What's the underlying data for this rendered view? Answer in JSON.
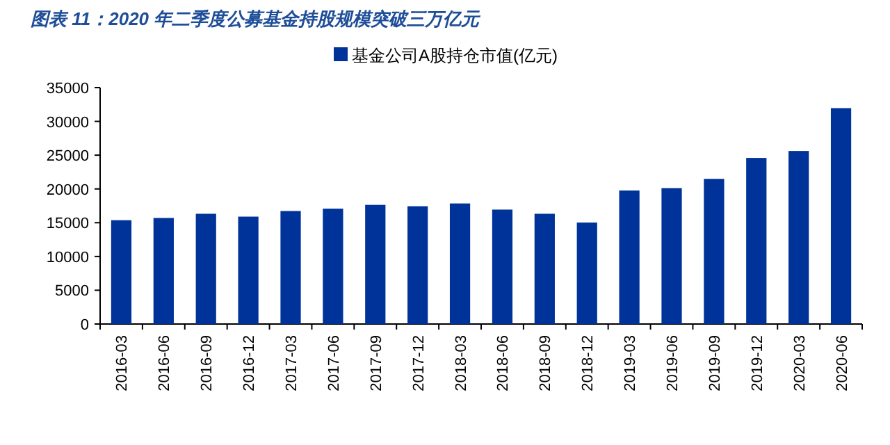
{
  "chart_data": {
    "type": "bar",
    "title": "图表 11：2020 年二季度公募基金持股规模突破三万亿元",
    "categories": [
      "2016-03",
      "2016-06",
      "2016-09",
      "2016-12",
      "2017-03",
      "2017-06",
      "2017-09",
      "2017-12",
      "2018-03",
      "2018-06",
      "2018-09",
      "2018-12",
      "2019-03",
      "2019-06",
      "2019-09",
      "2019-12",
      "2020-03",
      "2020-06"
    ],
    "series": [
      {
        "name": "基金公司A股持仓市值(亿元)",
        "color": "#003399",
        "values": [
          15370,
          15700,
          16320,
          15900,
          16730,
          17080,
          17640,
          17440,
          17850,
          16940,
          16320,
          15020,
          19770,
          20120,
          21490,
          24590,
          25620,
          31960
        ]
      }
    ],
    "ylim": [
      0,
      35000
    ],
    "yticks": [
      0,
      5000,
      10000,
      15000,
      20000,
      25000,
      30000,
      35000
    ],
    "legend": "top",
    "grid": false
  }
}
